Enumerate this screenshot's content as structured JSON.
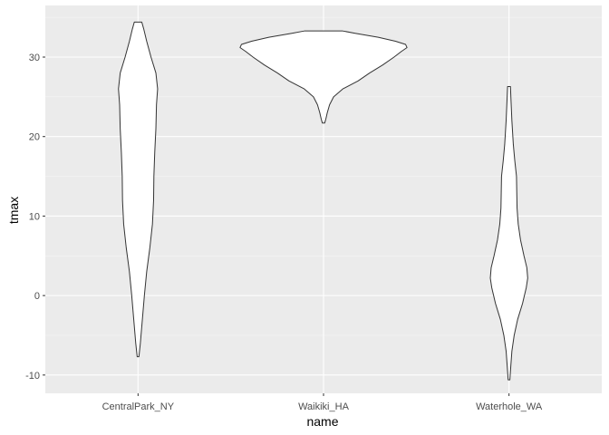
{
  "chart_data": {
    "type": "violin",
    "xlabel": "name",
    "ylabel": "tmax",
    "categories": [
      "CentralPark_NY",
      "Waikiki_HA",
      "Waterhole_WA"
    ],
    "ylim": [
      -12.3,
      36.5
    ],
    "yticks": [
      -10,
      0,
      10,
      20,
      30
    ],
    "grid": true,
    "colors": {
      "panel": "#ebebeb",
      "grid_major": "#ffffff",
      "grid_minor": "#f5f5f5",
      "violin_fill": "#ffffff",
      "violin_stroke": "#333333",
      "tick_text": "#4d4d4d"
    },
    "violins": [
      {
        "name": "CentralPark_NY",
        "profile": [
          [
            -7.7,
            0.003
          ],
          [
            -6,
            0.008
          ],
          [
            -3,
            0.015
          ],
          [
            0,
            0.022
          ],
          [
            3,
            0.03
          ],
          [
            6,
            0.041
          ],
          [
            9,
            0.05
          ],
          [
            12,
            0.054
          ],
          [
            15,
            0.055
          ],
          [
            18,
            0.058
          ],
          [
            21,
            0.062
          ],
          [
            24,
            0.064
          ],
          [
            26,
            0.068
          ],
          [
            28,
            0.062
          ],
          [
            30,
            0.045
          ],
          [
            32,
            0.03
          ],
          [
            33.5,
            0.02
          ],
          [
            34.4,
            0.013
          ]
        ]
      },
      {
        "name": "Waikiki_HA",
        "profile": [
          [
            21.7,
            0.004
          ],
          [
            22.2,
            0.008
          ],
          [
            23,
            0.013
          ],
          [
            24,
            0.021
          ],
          [
            25,
            0.035
          ],
          [
            26,
            0.067
          ],
          [
            27,
            0.12
          ],
          [
            28,
            0.16
          ],
          [
            29,
            0.205
          ],
          [
            30,
            0.245
          ],
          [
            30.7,
            0.27
          ],
          [
            31.2,
            0.29
          ],
          [
            31.6,
            0.285
          ],
          [
            32,
            0.25
          ],
          [
            32.5,
            0.19
          ],
          [
            33,
            0.11
          ],
          [
            33.3,
            0.065
          ]
        ]
      },
      {
        "name": "Waterhole_WA",
        "profile": [
          [
            -10.6,
            0.003
          ],
          [
            -9,
            0.006
          ],
          [
            -7,
            0.01
          ],
          [
            -5,
            0.018
          ],
          [
            -3,
            0.03
          ],
          [
            -1,
            0.047
          ],
          [
            1,
            0.06
          ],
          [
            2.2,
            0.065
          ],
          [
            3.5,
            0.062
          ],
          [
            5,
            0.052
          ],
          [
            7,
            0.04
          ],
          [
            9,
            0.032
          ],
          [
            11,
            0.028
          ],
          [
            13,
            0.027
          ],
          [
            15,
            0.026
          ],
          [
            17,
            0.02
          ],
          [
            19,
            0.015
          ],
          [
            22,
            0.01
          ],
          [
            24.5,
            0.007
          ],
          [
            26.3,
            0.005
          ]
        ]
      }
    ]
  }
}
